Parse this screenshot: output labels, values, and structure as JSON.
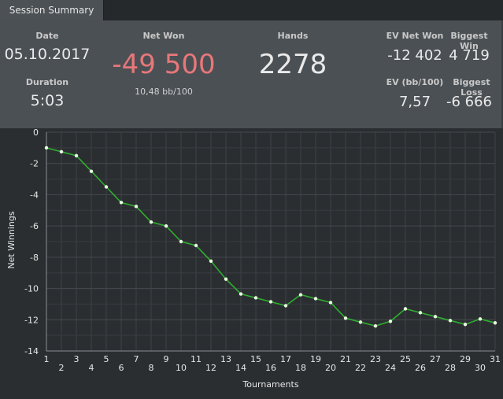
{
  "tab": {
    "label": "Session Summary"
  },
  "summary": {
    "date_label": "Date",
    "date": "05.10.2017",
    "duration_label": "Duration",
    "duration": "5:03",
    "net_won_label": "Net Won",
    "net_won": "-49 500",
    "net_won_sub": "10,48 bb/100",
    "hands_label": "Hands",
    "hands": "2278",
    "ev_net_won_label": "EV Net Won",
    "ev_net_won": "-12 402",
    "biggest_win_label": "Biggest Win",
    "biggest_win": "4 719",
    "ev_bb100_label": "EV (bb/100)",
    "ev_bb100": "7,57",
    "biggest_loss_label": "Biggest Loss",
    "biggest_loss": "-6 666"
  },
  "colors": {
    "negative": "#e8777a",
    "line": "#2fae2f",
    "point": "#e8ffe0"
  },
  "chart_data": {
    "type": "line",
    "xlabel": "Tournaments",
    "ylabel": "Net Winnings",
    "xlim": [
      1,
      31
    ],
    "ylim": [
      -14,
      0
    ],
    "yticks": [
      0,
      -2,
      -4,
      -6,
      -8,
      -10,
      -12,
      -14
    ],
    "xticks_row1": [
      1,
      3,
      5,
      7,
      9,
      11,
      13,
      15,
      17,
      19,
      21,
      23,
      25,
      27,
      29,
      31
    ],
    "xticks_row2": [
      2,
      4,
      6,
      8,
      10,
      12,
      14,
      16,
      18,
      20,
      22,
      24,
      26,
      28,
      30
    ],
    "grid": true,
    "x": [
      1,
      2,
      3,
      4,
      5,
      6,
      7,
      8,
      9,
      10,
      11,
      12,
      13,
      14,
      15,
      16,
      17,
      18,
      19,
      20,
      21,
      22,
      23,
      24,
      25,
      26,
      27,
      28,
      29,
      30,
      31
    ],
    "y": [
      -1.0,
      -1.25,
      -1.5,
      -2.5,
      -3.5,
      -4.5,
      -4.75,
      -5.75,
      -6.0,
      -7.0,
      -7.25,
      -8.25,
      -9.4,
      -10.35,
      -10.6,
      -10.85,
      -11.1,
      -10.4,
      -10.65,
      -10.9,
      -11.9,
      -12.15,
      -12.4,
      -12.1,
      -11.3,
      -11.55,
      -11.8,
      -12.05,
      -12.3,
      -11.95,
      -12.2
    ]
  }
}
